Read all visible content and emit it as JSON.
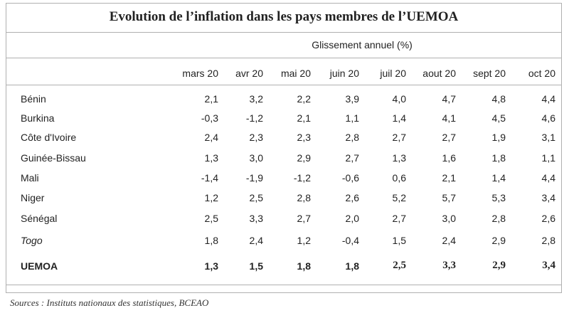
{
  "title": "Evolution de l’inflation dans les pays membres de l’UEMOA",
  "subheader": "Glissement annuel (%)",
  "columns": [
    "mars 20",
    "avr 20",
    "mai 20",
    "juin 20",
    "juil 20",
    "aout 20",
    "sept 20",
    "oct 20"
  ],
  "rows": [
    {
      "label": "Bénin",
      "values": [
        "2,1",
        "3,2",
        "2,2",
        "3,9",
        "4,0",
        "4,7",
        "4,8",
        "4,4"
      ]
    },
    {
      "label": "Burkina",
      "values": [
        "-0,3",
        "-1,2",
        "2,1",
        "1,1",
        "1,4",
        "4,1",
        "4,5",
        "4,6"
      ]
    },
    {
      "label": "Côte d'Ivoire",
      "values": [
        "2,4",
        "2,3",
        "2,3",
        "2,8",
        "2,7",
        "2,7",
        "1,9",
        "3,1"
      ]
    },
    {
      "label": "Guinée-Bissau",
      "values": [
        "1,3",
        "3,0",
        "2,9",
        "2,7",
        "1,3",
        "1,6",
        "1,8",
        "1,1"
      ]
    },
    {
      "label": "Mali",
      "values": [
        "-1,4",
        "-1,9",
        "-1,2",
        "-0,6",
        "0,6",
        "2,1",
        "1,4",
        "4,4"
      ]
    },
    {
      "label": "Niger",
      "values": [
        "1,2",
        "2,5",
        "2,8",
        "2,6",
        "5,2",
        "5,7",
        "5,3",
        "3,4"
      ]
    },
    {
      "label": "Sénégal",
      "values": [
        "2,5",
        "3,3",
        "2,7",
        "2,0",
        "2,7",
        "3,0",
        "2,8",
        "2,6"
      ]
    },
    {
      "label": "Togo",
      "values": [
        "1,8",
        "2,4",
        "1,2",
        "-0,4",
        "1,5",
        "2,4",
        "2,9",
        "2,8"
      ]
    }
  ],
  "total": {
    "label": "UEMOA",
    "values": [
      "1,3",
      "1,5",
      "1,8",
      "1,8",
      "2,5",
      "3,3",
      "2,9",
      "3,4"
    ]
  },
  "source": "Sources : Instituts nationaux des  statistiques, BCEAO"
}
